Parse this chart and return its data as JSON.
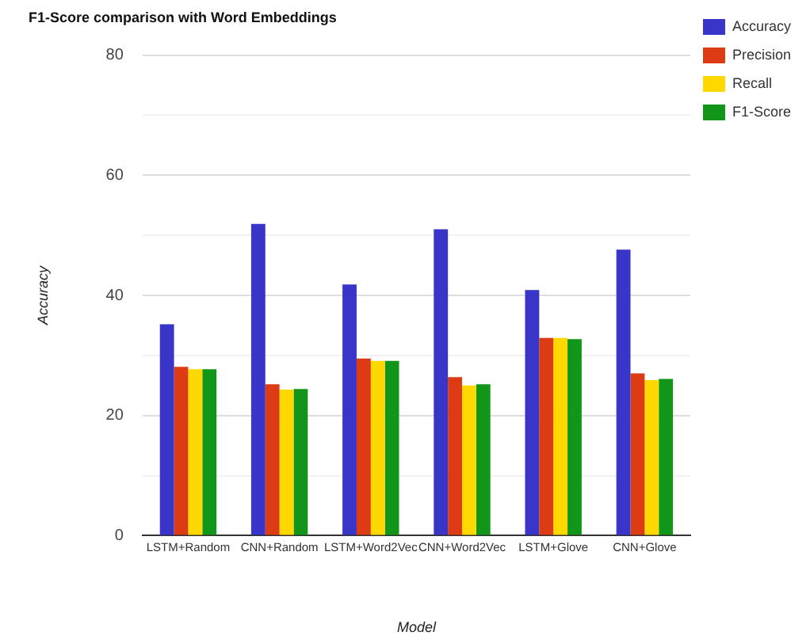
{
  "chart_data": {
    "type": "bar",
    "title": "F1-Score comparison with Word Embeddings",
    "xlabel": "Model",
    "ylabel": "Accuracy",
    "categories": [
      "LSTM+Random",
      "CNN+Random",
      "LSTM+Word2Vec",
      "CNN+Word2Vec",
      "LSTM+Glove",
      "CNN+Glove"
    ],
    "series": [
      {
        "name": "Accuracy",
        "color": "#3a35c9",
        "values": [
          35.2,
          51.9,
          41.8,
          51.0,
          40.9,
          47.6
        ]
      },
      {
        "name": "Precision",
        "color": "#dc3b13",
        "values": [
          28.1,
          25.2,
          29.5,
          26.4,
          32.9,
          27.0
        ]
      },
      {
        "name": "Recall",
        "color": "#ffd800",
        "values": [
          27.7,
          24.3,
          29.1,
          25.0,
          32.9,
          25.9
        ]
      },
      {
        "name": "F1-Score",
        "color": "#129619",
        "values": [
          27.7,
          24.4,
          29.1,
          25.2,
          32.7,
          26.1
        ]
      }
    ],
    "ylim": [
      0,
      80
    ],
    "yticks": [
      0,
      {
        "value": 10,
        "label": null
      },
      20,
      {
        "value": 30,
        "label": null
      },
      40,
      {
        "value": 50,
        "label": null
      },
      60,
      {
        "value": 70,
        "label": null
      },
      80
    ],
    "grid": "y",
    "legend": "top right"
  }
}
